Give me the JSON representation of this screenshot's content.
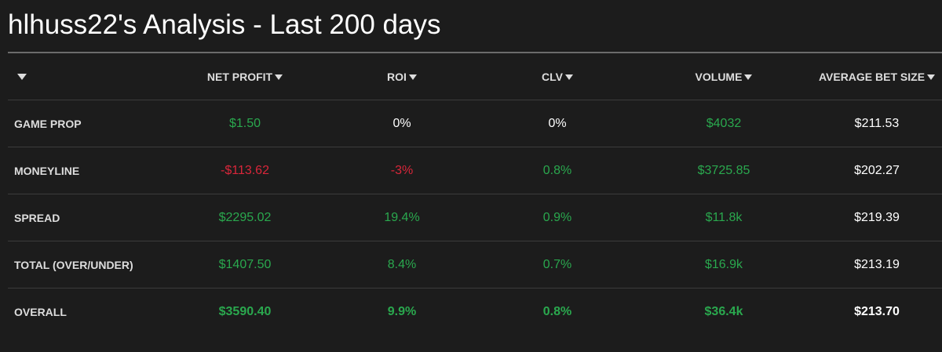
{
  "page": {
    "title": "hlhuss22's Analysis - Last 200 days"
  },
  "colors": {
    "background": "#1c1c1c",
    "positive": "#2aa84e",
    "negative": "#d9263a",
    "neutral": "#ffffff",
    "header_text": "#dddddd"
  },
  "table": {
    "first_column_icon": "caret-down-icon",
    "columns": [
      {
        "label": "NET PROFIT",
        "icon": "caret-down-icon"
      },
      {
        "label": "ROI",
        "icon": "caret-down-icon"
      },
      {
        "label": "CLV",
        "icon": "caret-down-icon"
      },
      {
        "label": "VOLUME",
        "icon": "caret-down-icon"
      },
      {
        "label": "AVERAGE BET SIZE",
        "icon": "caret-down-icon"
      }
    ],
    "rows": [
      {
        "label": "GAME PROP",
        "net_profit": "$1.50",
        "roi": "0%",
        "clv": "0%",
        "volume": "$4032",
        "average_bet_size": "$211.53"
      },
      {
        "label": "MONEYLINE",
        "net_profit": "-$113.62",
        "roi": "-3%",
        "clv": "0.8%",
        "volume": "$3725.85",
        "average_bet_size": "$202.27"
      },
      {
        "label": "SPREAD",
        "net_profit": "$2295.02",
        "roi": "19.4%",
        "clv": "0.9%",
        "volume": "$11.8k",
        "average_bet_size": "$219.39"
      },
      {
        "label": "TOTAL (OVER/UNDER)",
        "net_profit": "$1407.50",
        "roi": "8.4%",
        "clv": "0.7%",
        "volume": "$16.9k",
        "average_bet_size": "$213.19"
      },
      {
        "label": "OVERALL",
        "net_profit": "$3590.40",
        "roi": "9.9%",
        "clv": "0.8%",
        "volume": "$36.4k",
        "average_bet_size": "$213.70"
      }
    ]
  }
}
